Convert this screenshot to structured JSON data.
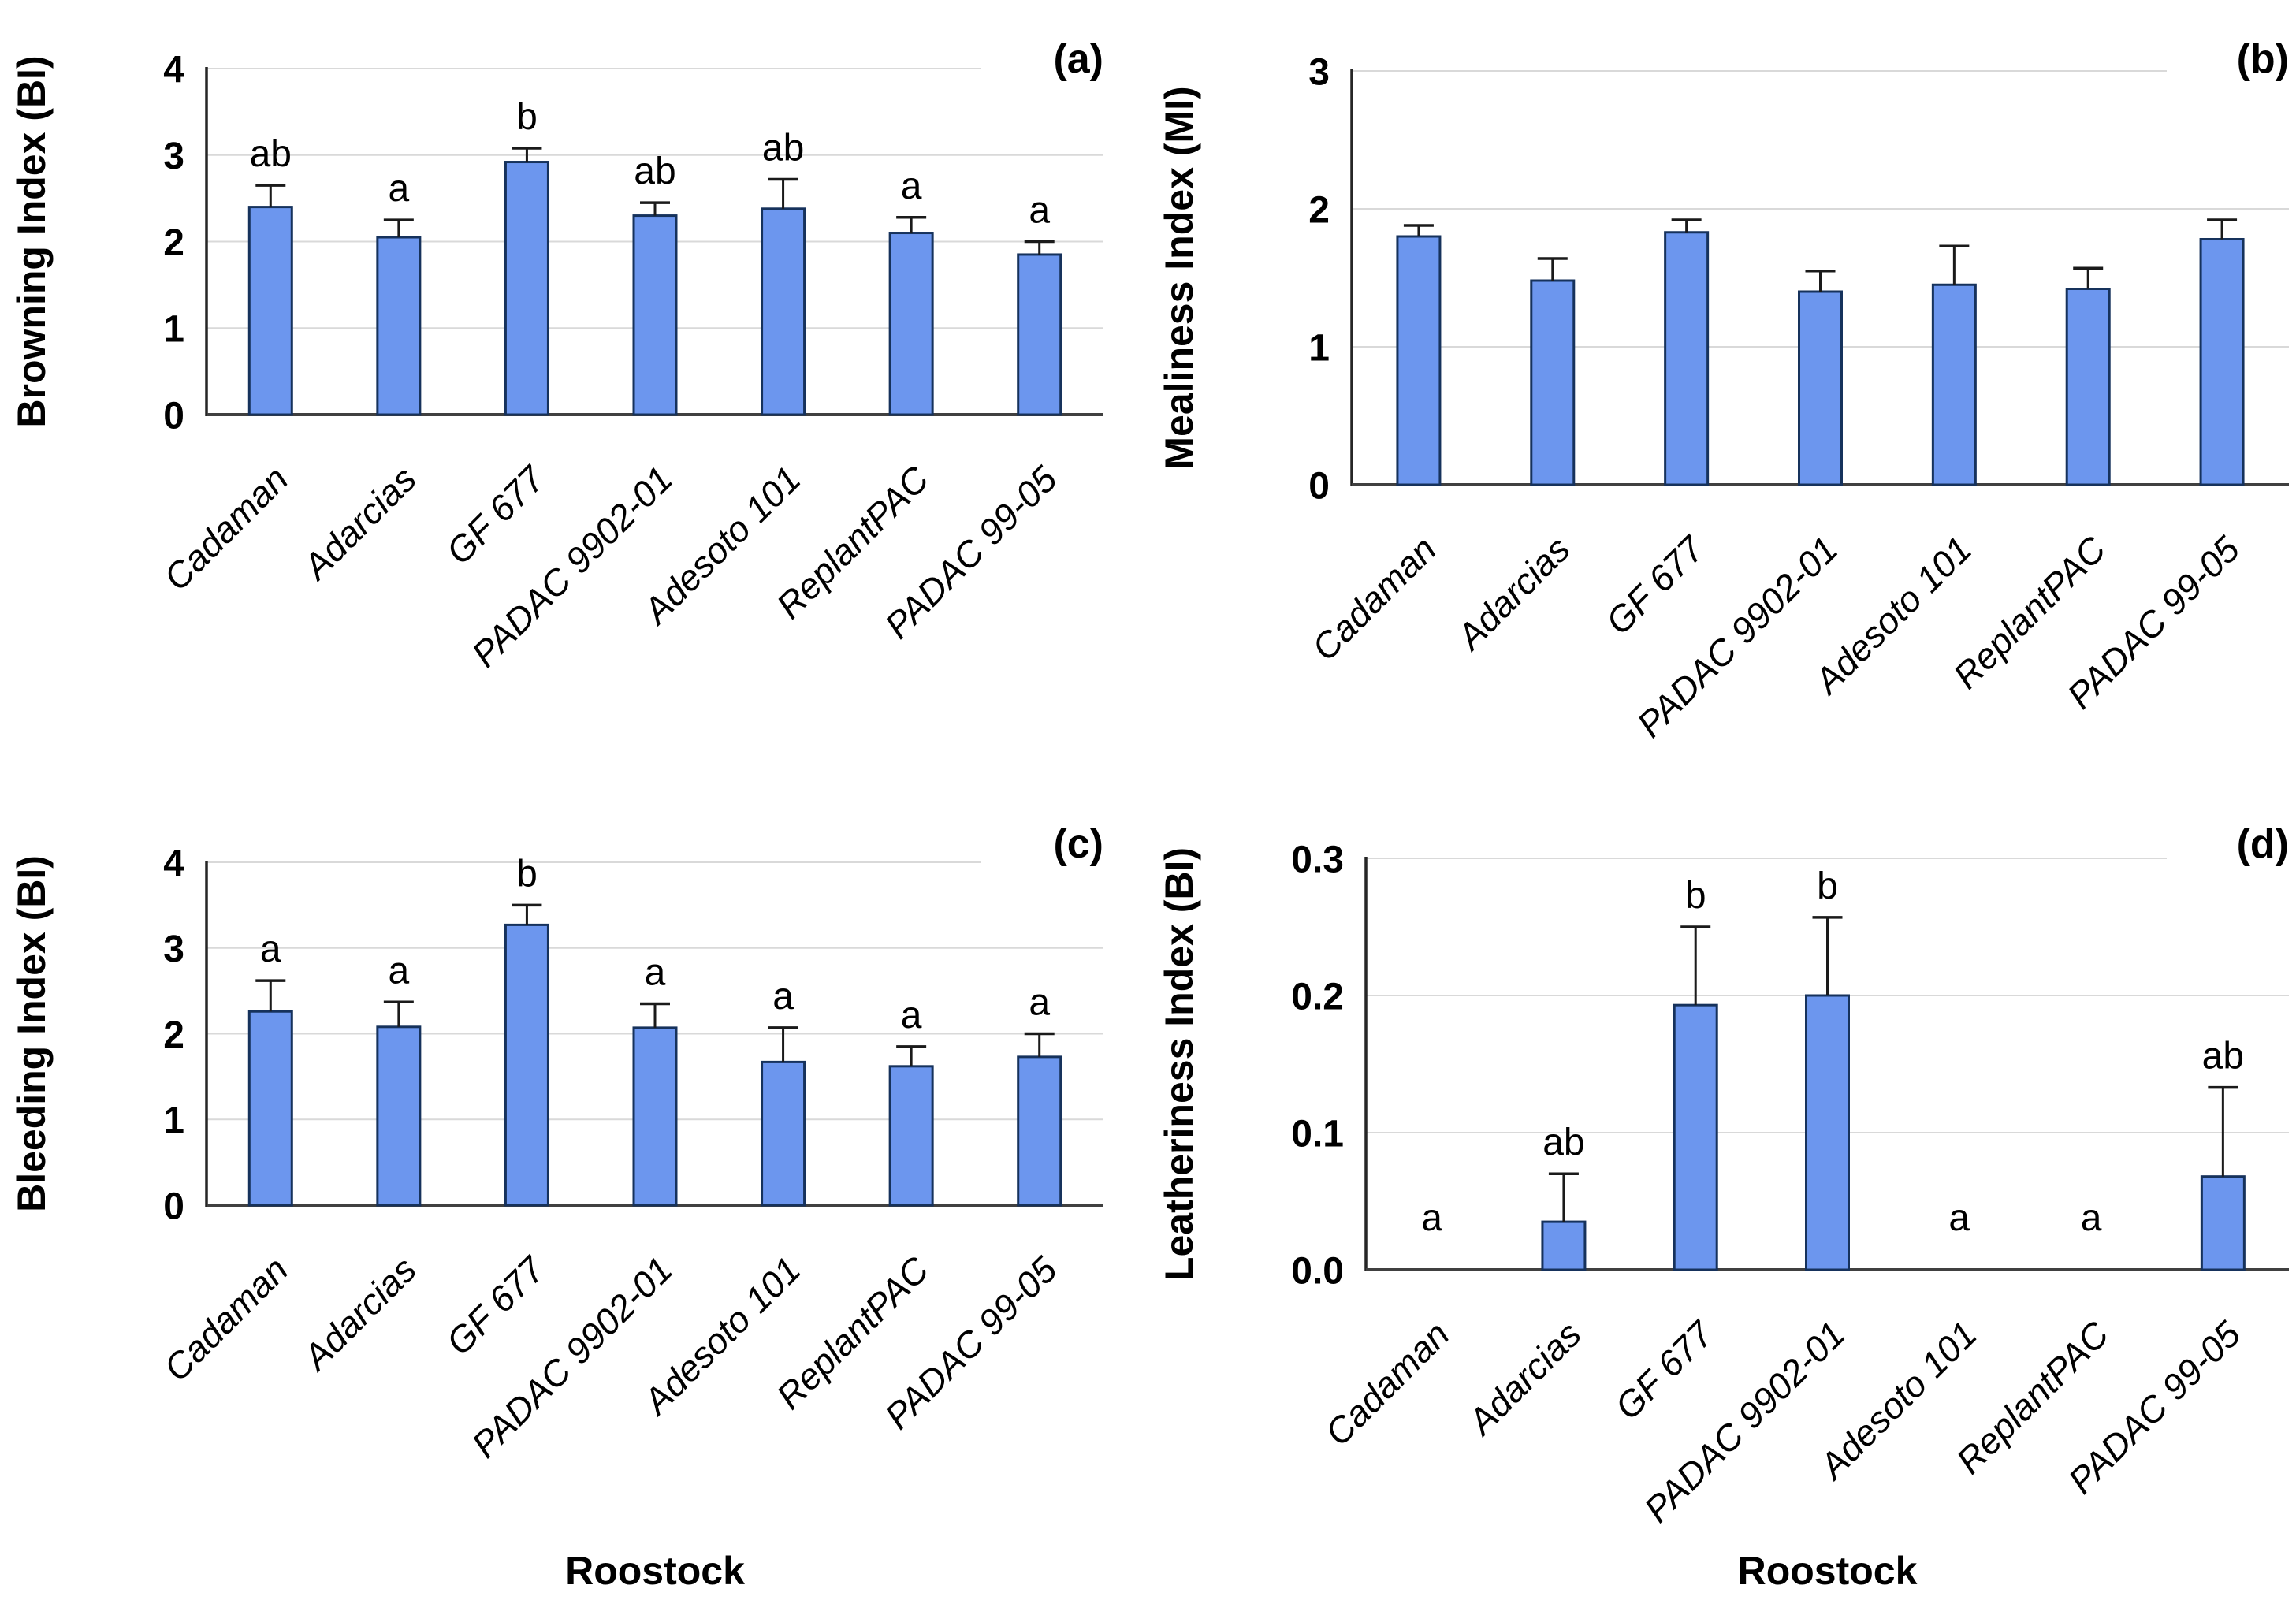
{
  "figure": {
    "background": "#ffffff",
    "bar_fill": "#6c96ee",
    "bar_border": "#16325c",
    "gridline_color": "#d9d9d9",
    "axis_line_color": "#262626",
    "baseline_color": "#404040",
    "error_bar_color": "#1a1a1a",
    "text_color": "#000000"
  },
  "rootstock_axis_title": "Roostock",
  "categories": [
    "Cadaman",
    "Adarcias",
    "GF 677",
    "PADAC 9902-01",
    "Adesoto 101",
    "ReplantPAC",
    "PADAC 99-05"
  ],
  "chart_data": [
    {
      "type": "bar",
      "panel_label": "(a)",
      "title": "",
      "ylabel": "Browning Index (BI)",
      "xlabel": "",
      "ylim": [
        0,
        4
      ],
      "ytick_values": [
        0,
        1,
        2,
        3,
        4
      ],
      "ytick_labels": [
        "0",
        "1",
        "2",
        "3",
        "4"
      ],
      "grid": true,
      "legend_position": "none",
      "categories": [
        "Cadaman",
        "Adarcias",
        "GF 677",
        "PADAC 9902-01",
        "Adesoto 101",
        "ReplantPAC",
        "PADAC 99-05"
      ],
      "values": [
        2.4,
        2.05,
        2.92,
        2.3,
        2.38,
        2.1,
        1.85
      ],
      "errors": [
        0.25,
        0.2,
        0.16,
        0.15,
        0.34,
        0.18,
        0.15
      ],
      "sig_letters": [
        "ab",
        "a",
        "b",
        "ab",
        "ab",
        "a",
        "a"
      ]
    },
    {
      "type": "bar",
      "panel_label": "(b)",
      "title": "",
      "ylabel": "Mealiness Index (MI)",
      "xlabel": "",
      "ylim": [
        0,
        3
      ],
      "ytick_values": [
        0,
        1,
        2,
        3
      ],
      "ytick_labels": [
        "0",
        "1",
        "2",
        "3"
      ],
      "grid": true,
      "legend_position": "none",
      "categories": [
        "Cadaman",
        "Adarcias",
        "GF 677",
        "PADAC 9902-01",
        "Adesoto 101",
        "ReplantPAC",
        "PADAC 99-05"
      ],
      "values": [
        1.8,
        1.48,
        1.83,
        1.4,
        1.45,
        1.42,
        1.78
      ],
      "errors": [
        0.08,
        0.16,
        0.09,
        0.15,
        0.28,
        0.15,
        0.14
      ],
      "sig_letters": null
    },
    {
      "type": "bar",
      "panel_label": "(c)",
      "title": "",
      "ylabel": "Bleeding Index (BI)",
      "xlabel": "Roostock",
      "ylim": [
        0,
        4
      ],
      "ytick_values": [
        0,
        1,
        2,
        3,
        4
      ],
      "ytick_labels": [
        "0",
        "1",
        "2",
        "3",
        "4"
      ],
      "grid": true,
      "legend_position": "none",
      "categories": [
        "Cadaman",
        "Adarcias",
        "GF 677",
        "PADAC 9902-01",
        "Adesoto 101",
        "ReplantPAC",
        "PADAC 99-05"
      ],
      "values": [
        2.26,
        2.08,
        3.27,
        2.07,
        1.67,
        1.62,
        1.73
      ],
      "errors": [
        0.36,
        0.29,
        0.23,
        0.28,
        0.4,
        0.23,
        0.27
      ],
      "sig_letters": [
        "a",
        "a",
        "b",
        "a",
        "a",
        "a",
        "a"
      ]
    },
    {
      "type": "bar",
      "panel_label": "(d)",
      "title": "",
      "ylabel": "Leatheriness Index (BI)",
      "xlabel": "Roostock",
      "ylim": [
        0,
        0.3
      ],
      "ytick_values": [
        0,
        0.1,
        0.2,
        0.3
      ],
      "ytick_labels": [
        "0.0",
        "0.1",
        "0.2",
        "0.3"
      ],
      "grid": true,
      "legend_position": "none",
      "categories": [
        "Cadaman",
        "Adarcias",
        "GF 677",
        "PADAC 9902-01",
        "Adesoto 101",
        "ReplantPAC",
        "PADAC 99-05"
      ],
      "values": [
        0,
        0.035,
        0.193,
        0.2,
        0,
        0,
        0.068
      ],
      "errors": [
        0,
        0.035,
        0.057,
        0.057,
        0,
        0,
        0.065
      ],
      "sig_letters": [
        "a",
        "ab",
        "b",
        "b",
        "a",
        "a",
        "ab"
      ]
    }
  ]
}
